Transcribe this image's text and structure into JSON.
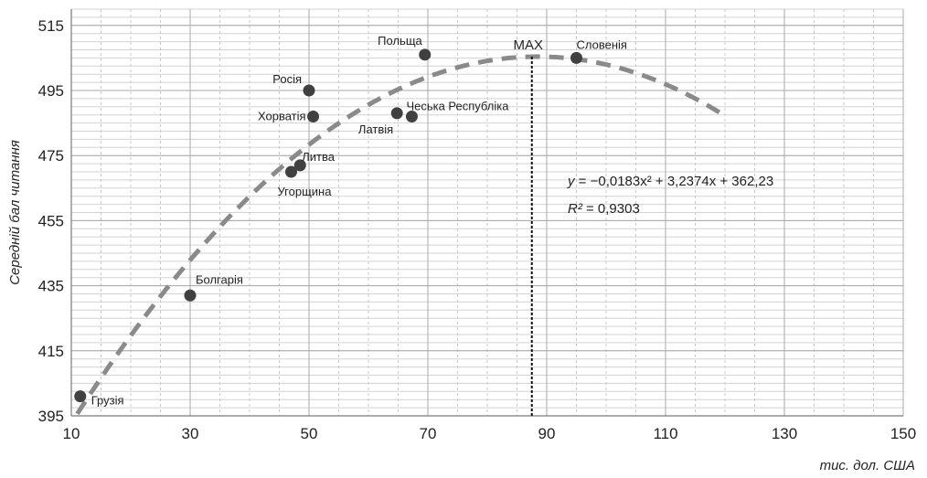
{
  "chart_data": {
    "type": "scatter",
    "title": "",
    "xlabel": "тис. дол. США",
    "ylabel": "Середній бал читання",
    "xlim": [
      10,
      150
    ],
    "ylim": [
      395,
      520
    ],
    "xticks": [
      10,
      30,
      50,
      70,
      90,
      110,
      130,
      150
    ],
    "yticks": [
      395,
      415,
      435,
      455,
      475,
      495,
      515
    ],
    "grid": true,
    "series": [
      {
        "points": [
          {
            "label": "Грузія",
            "x": 11.5,
            "y": 401
          },
          {
            "label": "Болгарія",
            "x": 30,
            "y": 432
          },
          {
            "label": "Угорщина",
            "x": 47,
            "y": 470
          },
          {
            "label": "Литва",
            "x": 48.5,
            "y": 472
          },
          {
            "label": "Росія",
            "x": 50,
            "y": 495
          },
          {
            "label": "Хорватія",
            "x": 50.7,
            "y": 487
          },
          {
            "label": "Латвія",
            "x": 64.8,
            "y": 488
          },
          {
            "label": "Чеська Республіка",
            "x": 67.3,
            "y": 487
          },
          {
            "label": "Польща",
            "x": 69.5,
            "y": 506
          },
          {
            "label": "Словенія",
            "x": 95,
            "y": 505
          }
        ]
      }
    ],
    "trendline": {
      "type": "polynomial",
      "coefficients": [
        -0.0183,
        3.2374,
        362.23
      ],
      "x_range": [
        11,
        120
      ],
      "equation_prefix": "y",
      "equation_rest": " = −0,0183x² + 3,2374x + 362,23",
      "r2_prefix": "R²",
      "r2_rest": " = 0,9303"
    },
    "max_marker": {
      "label": "MAX",
      "x": 87.5
    }
  }
}
